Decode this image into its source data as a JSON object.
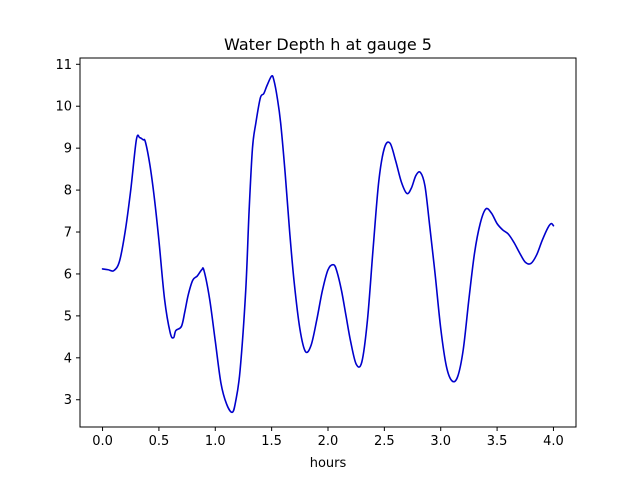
{
  "chart_data": {
    "type": "line",
    "title": "Water Depth h at gauge 5",
    "xlabel": "hours",
    "ylabel": "",
    "xlim": [
      -0.2,
      4.2
    ],
    "ylim": [
      2.35,
      11.15
    ],
    "grid": false,
    "legend": "none",
    "x_ticks": [
      0.0,
      0.5,
      1.0,
      1.5,
      2.0,
      2.5,
      3.0,
      3.5,
      4.0
    ],
    "x_tick_labels": [
      "0.0",
      "0.5",
      "1.0",
      "1.5",
      "2.0",
      "2.5",
      "3.0",
      "3.5",
      "4.0"
    ],
    "y_ticks": [
      3,
      4,
      5,
      6,
      7,
      8,
      9,
      10,
      11
    ],
    "y_tick_labels": [
      "3",
      "4",
      "5",
      "6",
      "7",
      "8",
      "9",
      "10",
      "11"
    ],
    "series": [
      {
        "color": "#0000cc",
        "x": [
          0.0,
          0.05,
          0.1,
          0.15,
          0.2,
          0.25,
          0.3,
          0.33,
          0.36,
          0.38,
          0.42,
          0.46,
          0.5,
          0.55,
          0.6,
          0.63,
          0.65,
          0.7,
          0.73,
          0.76,
          0.8,
          0.84,
          0.88,
          0.9,
          0.95,
          1.0,
          1.05,
          1.1,
          1.15,
          1.18,
          1.22,
          1.27,
          1.3,
          1.33,
          1.36,
          1.4,
          1.43,
          1.46,
          1.5,
          1.52,
          1.55,
          1.58,
          1.62,
          1.66,
          1.7,
          1.75,
          1.8,
          1.85,
          1.9,
          1.95,
          2.0,
          2.05,
          2.08,
          2.12,
          2.16,
          2.2,
          2.25,
          2.3,
          2.35,
          2.4,
          2.45,
          2.5,
          2.55,
          2.6,
          2.65,
          2.7,
          2.74,
          2.78,
          2.82,
          2.86,
          2.9,
          2.95,
          3.0,
          3.05,
          3.1,
          3.15,
          3.2,
          3.25,
          3.3,
          3.35,
          3.4,
          3.45,
          3.5,
          3.55,
          3.6,
          3.65,
          3.7,
          3.75,
          3.8,
          3.85,
          3.9,
          3.95,
          3.98,
          4.0
        ],
        "y": [
          6.12,
          6.1,
          6.08,
          6.3,
          7.0,
          8.0,
          9.2,
          9.25,
          9.2,
          9.15,
          8.6,
          7.8,
          6.8,
          5.4,
          4.6,
          4.48,
          4.65,
          4.75,
          5.1,
          5.5,
          5.85,
          5.95,
          6.1,
          6.08,
          5.4,
          4.4,
          3.4,
          2.9,
          2.7,
          2.95,
          3.7,
          5.6,
          7.5,
          9.0,
          9.6,
          10.2,
          10.3,
          10.5,
          10.72,
          10.62,
          10.2,
          9.6,
          8.4,
          7.0,
          5.8,
          4.7,
          4.15,
          4.3,
          4.9,
          5.6,
          6.1,
          6.22,
          6.05,
          5.6,
          5.0,
          4.4,
          3.85,
          3.9,
          4.9,
          6.6,
          8.2,
          9.0,
          9.12,
          8.7,
          8.2,
          7.92,
          8.05,
          8.35,
          8.42,
          8.1,
          7.2,
          6.0,
          4.7,
          3.8,
          3.45,
          3.55,
          4.2,
          5.4,
          6.5,
          7.2,
          7.55,
          7.45,
          7.2,
          7.05,
          6.95,
          6.75,
          6.5,
          6.28,
          6.25,
          6.45,
          6.8,
          7.1,
          7.2,
          7.15
        ]
      }
    ]
  }
}
